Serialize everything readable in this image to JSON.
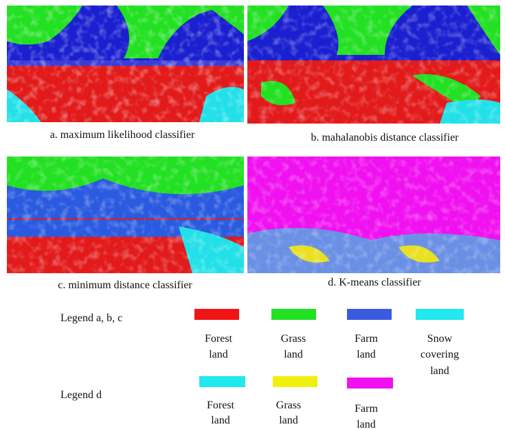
{
  "panels": [
    {
      "caption": "a. maximum likelihood classifier"
    },
    {
      "caption": "b. mahalanobis distance classifier"
    },
    {
      "caption": "c. minimum distance classifier"
    },
    {
      "caption": "d.  K-means classifier"
    }
  ],
  "legends": [
    {
      "title": "Legend a, b, c",
      "items": [
        {
          "lines": [
            "Forest",
            "land"
          ]
        },
        {
          "lines": [
            "Grass",
            "land"
          ]
        },
        {
          "lines": [
            "Farm",
            "land"
          ]
        },
        {
          "lines": [
            "Snow",
            "covering",
            "land"
          ]
        }
      ]
    },
    {
      "title": "Legend d",
      "items": [
        {
          "lines": [
            "Forest",
            "land"
          ]
        },
        {
          "lines": [
            "Grass",
            "land"
          ]
        },
        {
          "lines": [
            "Farm",
            "land"
          ]
        }
      ]
    }
  ]
}
